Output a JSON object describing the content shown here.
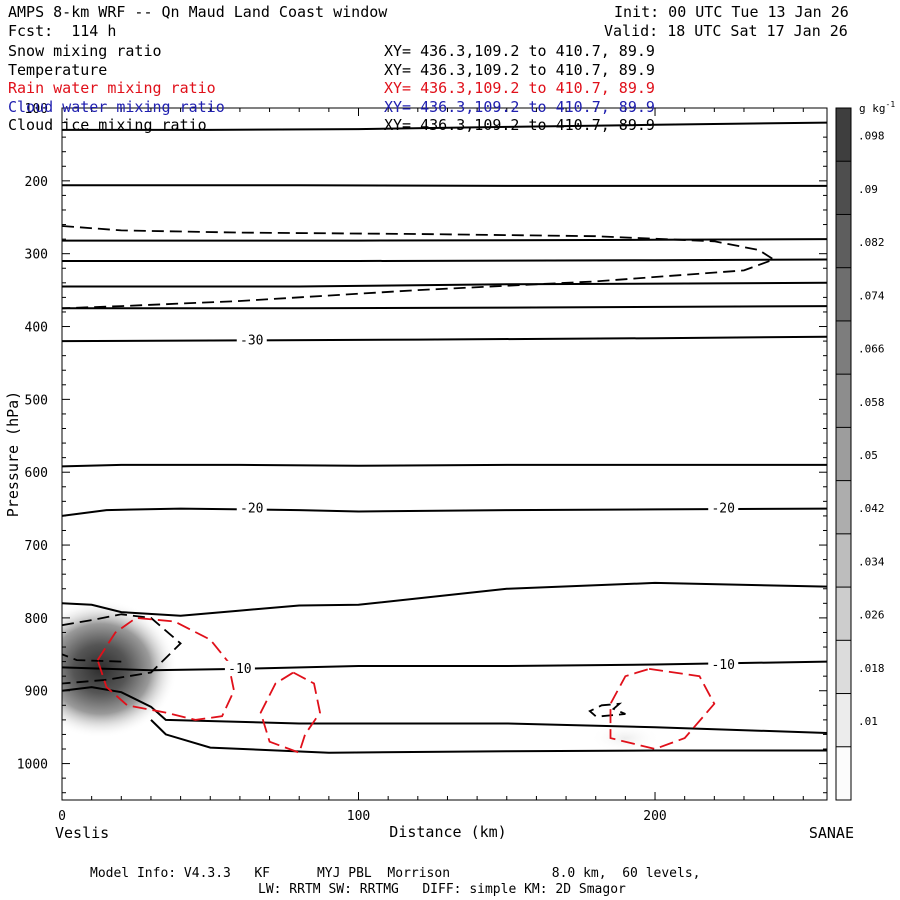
{
  "header": {
    "title": "AMPS 8-km WRF -- Qn Maud Land Coast window",
    "init": "Init: 00 UTC Tue 13 Jan 26",
    "forecast": "Fcst:  114 h",
    "valid": "Valid: 18 UTC Sat 17 Jan 26"
  },
  "fields": [
    {
      "name": "Snow mixing ratio",
      "xy": "XY= 436.3,109.2 to 410.7, 89.9",
      "color": "#000000"
    },
    {
      "name": "Temperature",
      "xy": "XY= 436.3,109.2 to 410.7, 89.9",
      "color": "#000000"
    },
    {
      "name": "Rain water mixing ratio",
      "xy": "XY= 436.3,109.2 to 410.7, 89.9",
      "color": "#e0101a"
    },
    {
      "name": "Cloud water mixing ratio",
      "xy": "XY= 436.3,109.2 to 410.7, 89.9",
      "color": "#2020b0"
    },
    {
      "name": "Cloud ice mixing ratio",
      "xy": "XY= 436.3,109.2 to 410.7, 89.9",
      "color": "#000000"
    }
  ],
  "footer": {
    "line1": "Model Info: V4.3.3   KF      MYJ PBL  Morrison             8.0 km,  60 levels,",
    "line2": "LW: RRTM SW: RRTMG   DIFF: simple KM: 2D Smagor"
  },
  "chart_data": {
    "type": "cross-section contour",
    "xlabel": "Distance (km)",
    "ylabel": "Pressure (hPa)",
    "xlim": [
      0,
      258
    ],
    "ylim": [
      1050,
      100
    ],
    "xticks": [
      0,
      100,
      200
    ],
    "yticks": [
      100,
      200,
      300,
      400,
      500,
      600,
      700,
      800,
      900,
      1000
    ],
    "start_label": "Veslis",
    "end_label": "SANAE",
    "colorbar": {
      "unit": "g kg",
      "unit_exp": "-1",
      "ticks": [
        ".01",
        ".018",
        ".026",
        ".034",
        ".042",
        ".05",
        ".058",
        ".066",
        ".074",
        ".082",
        ".09",
        ".098"
      ]
    },
    "temperature_labels": [
      {
        "text": "-30",
        "x": 64,
        "p": 419
      },
      {
        "text": "-20",
        "x": 64,
        "p": 650
      },
      {
        "text": "-20",
        "x": 223,
        "p": 650
      },
      {
        "text": "-10",
        "x": 60,
        "p": 870
      },
      {
        "text": "-10",
        "x": 223,
        "p": 865
      }
    ],
    "temperature_contours": [
      [
        [
          0,
          130
        ],
        [
          50,
          130
        ],
        [
          100,
          129
        ],
        [
          150,
          126
        ],
        [
          200,
          123
        ],
        [
          258,
          120
        ]
      ],
      [
        [
          0,
          206
        ],
        [
          80,
          206
        ],
        [
          150,
          207
        ],
        [
          258,
          207
        ]
      ],
      [
        [
          0,
          282
        ],
        [
          100,
          282
        ],
        [
          200,
          281
        ],
        [
          258,
          280
        ]
      ],
      [
        [
          0,
          310
        ],
        [
          100,
          310
        ],
        [
          200,
          309
        ],
        [
          258,
          308
        ]
      ],
      [
        [
          0,
          345
        ],
        [
          80,
          345
        ],
        [
          150,
          342
        ],
        [
          258,
          340
        ]
      ],
      [
        [
          0,
          375
        ],
        [
          80,
          375
        ],
        [
          150,
          374
        ],
        [
          258,
          372
        ]
      ],
      [
        [
          0,
          420
        ],
        [
          60,
          419
        ],
        [
          120,
          418
        ],
        [
          200,
          416
        ],
        [
          258,
          414
        ]
      ],
      [
        [
          0,
          592
        ],
        [
          20,
          590
        ],
        [
          60,
          590
        ],
        [
          100,
          591
        ],
        [
          150,
          590
        ],
        [
          200,
          590
        ],
        [
          258,
          590
        ]
      ],
      [
        [
          0,
          660
        ],
        [
          15,
          652
        ],
        [
          40,
          650
        ],
        [
          80,
          652
        ],
        [
          100,
          654
        ],
        [
          150,
          652
        ],
        [
          200,
          651
        ],
        [
          258,
          650
        ]
      ],
      [
        [
          0,
          780
        ],
        [
          10,
          782
        ],
        [
          20,
          792
        ],
        [
          40,
          797
        ],
        [
          60,
          790
        ],
        [
          80,
          783
        ],
        [
          100,
          782
        ],
        [
          150,
          760
        ],
        [
          200,
          752
        ],
        [
          258,
          757
        ]
      ],
      [
        [
          0,
          868
        ],
        [
          30,
          872
        ],
        [
          60,
          870
        ],
        [
          100,
          866
        ],
        [
          150,
          866
        ],
        [
          200,
          864
        ],
        [
          258,
          860
        ]
      ],
      [
        [
          0,
          900
        ],
        [
          10,
          895
        ],
        [
          20,
          902
        ],
        [
          30,
          922
        ],
        [
          35,
          940
        ],
        [
          80,
          945
        ],
        [
          150,
          945
        ],
        [
          200,
          950
        ],
        [
          258,
          958
        ]
      ],
      [
        [
          30,
          940
        ],
        [
          35,
          960
        ],
        [
          50,
          978
        ],
        [
          90,
          985
        ],
        [
          150,
          983
        ],
        [
          200,
          982
        ],
        [
          258,
          982
        ]
      ]
    ],
    "snow_contours": [
      [
        [
          20,
          860
        ],
        [
          5,
          858
        ],
        [
          0,
          850
        ]
      ],
      [
        [
          0,
          262
        ],
        [
          20,
          268
        ],
        [
          60,
          271
        ],
        [
          120,
          273
        ],
        [
          180,
          276
        ],
        [
          220,
          283
        ],
        [
          235,
          295
        ],
        [
          240,
          308
        ],
        [
          230,
          323
        ],
        [
          180,
          338
        ],
        [
          120,
          350
        ],
        [
          60,
          365
        ],
        [
          20,
          372
        ],
        [
          0,
          375
        ]
      ],
      [
        [
          0,
          810
        ],
        [
          10,
          803
        ],
        [
          20,
          795
        ],
        [
          30,
          800
        ],
        [
          40,
          835
        ],
        [
          35,
          855
        ],
        [
          30,
          875
        ],
        [
          15,
          885
        ],
        [
          0,
          890
        ]
      ],
      [
        [
          180,
          935
        ],
        [
          178,
          928
        ],
        [
          182,
          920
        ],
        [
          188,
          918
        ],
        [
          186,
          925
        ],
        [
          190,
          932
        ],
        [
          182,
          935
        ]
      ]
    ],
    "rain_contours": [
      [
        [
          12,
          858
        ],
        [
          18,
          820
        ],
        [
          25,
          800
        ],
        [
          38,
          805
        ],
        [
          50,
          830
        ],
        [
          56,
          860
        ],
        [
          58,
          900
        ],
        [
          54,
          935
        ],
        [
          45,
          940
        ],
        [
          35,
          930
        ],
        [
          22,
          920
        ],
        [
          15,
          895
        ],
        [
          12,
          858
        ]
      ],
      [
        [
          78,
          875
        ],
        [
          85,
          890
        ],
        [
          87,
          930
        ],
        [
          82,
          960
        ],
        [
          80,
          985
        ],
        [
          70,
          970
        ],
        [
          67,
          930
        ],
        [
          72,
          890
        ],
        [
          78,
          875
        ]
      ],
      [
        [
          198,
          870
        ],
        [
          215,
          880
        ],
        [
          220,
          918
        ],
        [
          210,
          965
        ],
        [
          200,
          980
        ],
        [
          185,
          965
        ],
        [
          185,
          918
        ],
        [
          190,
          880
        ],
        [
          198,
          870
        ]
      ]
    ],
    "snow_shading": [
      {
        "x": 13,
        "p": 870,
        "rx": 26,
        "rp": 95,
        "value": 0.11
      },
      {
        "x": 190,
        "p": 965,
        "rx": 12,
        "rp": 20,
        "value": 0.012
      }
    ]
  }
}
